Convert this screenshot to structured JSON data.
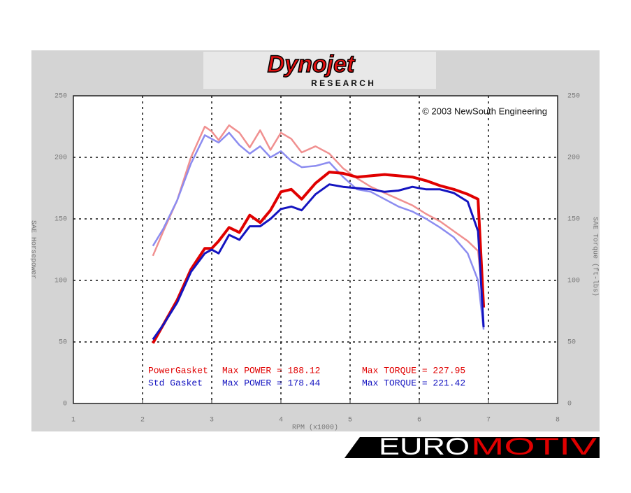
{
  "chart_data": {
    "type": "line",
    "logo": {
      "name": "Dynojet",
      "sub": "R E S E A R C H"
    },
    "copyright": "© 2003 NewSouth Engineering",
    "brand": {
      "left": "EURO",
      "right": "MOTIV"
    },
    "x_label": "RPM (x1000)",
    "y_label": "SAE Horsepower",
    "y2_label": "SAE Torque (ft-lbs)",
    "x": [
      2.15,
      2.3,
      2.5,
      2.7,
      2.9,
      3.0,
      3.1,
      3.25,
      3.4,
      3.55,
      3.7,
      3.85,
      4.0,
      4.15,
      4.3,
      4.5,
      4.7,
      4.9,
      5.1,
      5.3,
      5.5,
      5.7,
      5.9,
      6.1,
      6.3,
      6.5,
      6.7,
      6.85,
      6.93
    ],
    "series": [
      {
        "name": "PowerGasket",
        "color": "#e00000",
        "torque_color": "#f09090",
        "max_power_label": "Max POWER = 188.12",
        "max_torque_label": "Max TORQUE = 227.95",
        "values": [
          49,
          64,
          84,
          109,
          126,
          126,
          132,
          143,
          139,
          153,
          147,
          157,
          172,
          174,
          166,
          179,
          188,
          187,
          184,
          185,
          186,
          185,
          184,
          181,
          177,
          174,
          170,
          166,
          78
        ],
        "torque_values": [
          120,
          140,
          165,
          200,
          225,
          221,
          214,
          226,
          220,
          208,
          222,
          206,
          220,
          215,
          204,
          209,
          203,
          191,
          183,
          176,
          171,
          166,
          161,
          154,
          148,
          140,
          132,
          124,
          80
        ]
      },
      {
        "name": "Std Gasket",
        "color": "#1414c0",
        "torque_color": "#8c8cf0",
        "max_power_label": "Max POWER = 178.44",
        "max_torque_label": "Max TORQUE = 221.42",
        "values": [
          52,
          64,
          82,
          107,
          122,
          125,
          122,
          137,
          133,
          144,
          144,
          150,
          158,
          160,
          157,
          170,
          178,
          176,
          175,
          174,
          172,
          173,
          176,
          174,
          174,
          171,
          164,
          140,
          62
        ],
        "torque_values": [
          128,
          142,
          165,
          195,
          218,
          215,
          212,
          220,
          210,
          203,
          209,
          200,
          205,
          197,
          192,
          193,
          196,
          184,
          174,
          172,
          166,
          160,
          156,
          150,
          143,
          135,
          122,
          100,
          60
        ]
      }
    ],
    "xlim": [
      1,
      8
    ],
    "xticks": [
      1,
      2,
      3,
      4,
      5,
      6,
      7,
      8
    ],
    "ylim": [
      0,
      250
    ],
    "yticks": [
      0,
      50,
      100,
      150,
      200,
      250
    ],
    "y2lim": [
      0,
      250
    ],
    "y2ticks": [
      0,
      50,
      100,
      150,
      200,
      250
    ],
    "grid": true
  }
}
